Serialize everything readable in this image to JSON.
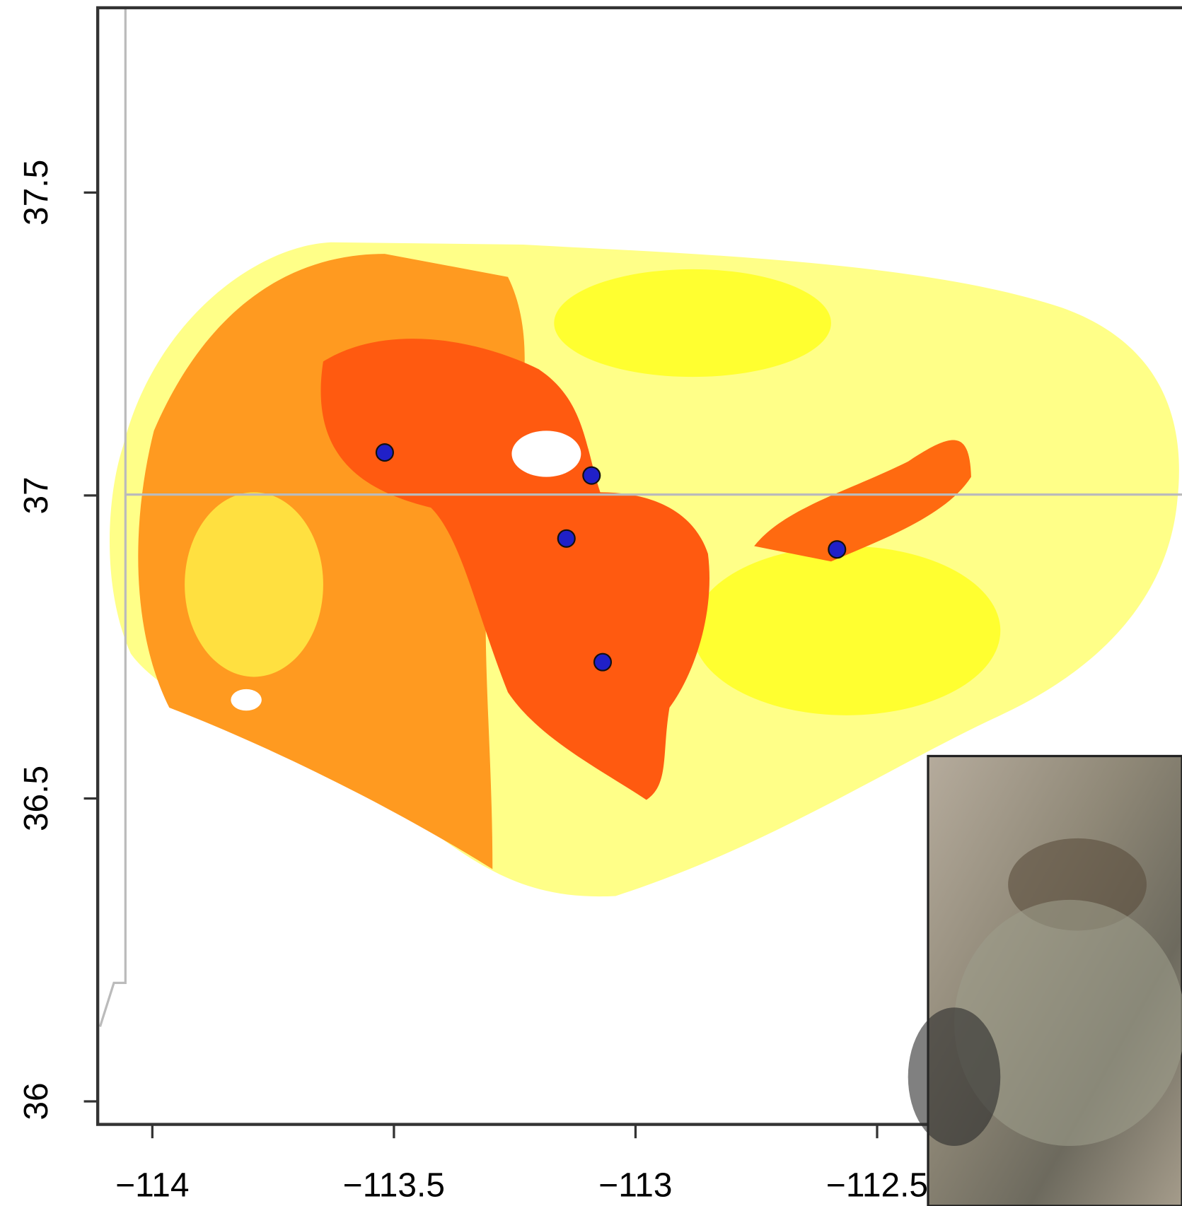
{
  "chart_data": {
    "type": "scatter",
    "x": [
      -113.519,
      -113.091,
      -113.143,
      -112.583,
      -113.068
    ],
    "values": [
      37.071,
      37.033,
      36.929,
      36.911,
      36.725
    ],
    "color": "#2020c8",
    "xlim": [
      -114.113,
      -111.869
    ],
    "ylim": [
      35.962,
      37.805
    ],
    "xticks": [
      {
        "value": -114,
        "label": "−114"
      },
      {
        "value": -113.5,
        "label": "−113.5"
      },
      {
        "value": -113,
        "label": "−113"
      },
      {
        "value": -112.5,
        "label": "−112.5"
      }
    ],
    "yticks": [
      36,
      36.5,
      37,
      37.5
    ]
  }
}
